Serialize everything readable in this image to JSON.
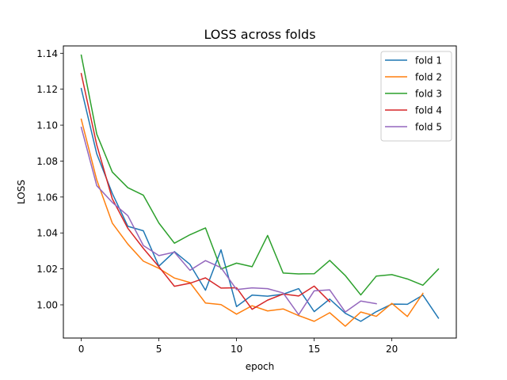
{
  "chart_data": {
    "type": "line",
    "title": "LOSS across folds",
    "xlabel": "epoch",
    "ylabel": "LOSS",
    "xlim": [
      -1.15,
      24.15
    ],
    "ylim": [
      0.9815,
      1.1441
    ],
    "xticks": [
      0,
      5,
      10,
      15,
      20
    ],
    "yticks": [
      1.0,
      1.02,
      1.04,
      1.06,
      1.08,
      1.1,
      1.12,
      1.14
    ],
    "grid": false,
    "legend_position": "top-right",
    "series": [
      {
        "name": "fold 1",
        "color": "#1f77b4",
        "x": [
          0,
          1,
          2,
          3,
          4,
          5,
          6,
          7,
          8,
          9,
          10,
          11,
          12,
          13,
          14,
          15,
          16,
          17,
          18,
          19,
          20,
          21,
          22,
          23
        ],
        "y": [
          1.1204,
          1.084,
          1.062,
          1.0437,
          1.0412,
          1.0215,
          1.0296,
          1.0225,
          1.0081,
          1.0306,
          0.999,
          1.0054,
          1.0048,
          1.0059,
          1.009,
          0.9962,
          1.0032,
          0.9953,
          0.9908,
          0.9962,
          1.0004,
          1.0003,
          1.0054,
          0.9926
        ]
      },
      {
        "name": "fold 2",
        "color": "#ff7f0e",
        "x": [
          0,
          1,
          2,
          3,
          4,
          5,
          6,
          7,
          8,
          9,
          10,
          11,
          12,
          13,
          14,
          15,
          16,
          17,
          18,
          19,
          20,
          21,
          22
        ],
        "y": [
          1.1033,
          1.0695,
          1.0455,
          1.0338,
          1.0243,
          1.0203,
          1.0149,
          1.0124,
          1.001,
          1.0001,
          0.9948,
          0.9995,
          0.9966,
          0.9977,
          0.994,
          0.9908,
          0.9956,
          0.9881,
          0.996,
          0.9936,
          1.0008,
          0.9935,
          1.0064
        ]
      },
      {
        "name": "fold 3",
        "color": "#2ca02c",
        "x": [
          0,
          1,
          2,
          3,
          4,
          5,
          6,
          7,
          8,
          9,
          10,
          11,
          12,
          13,
          14,
          15,
          16,
          17,
          18,
          19,
          20,
          21,
          22,
          23
        ],
        "y": [
          1.139,
          1.095,
          1.0739,
          1.0652,
          1.061,
          1.0455,
          1.0343,
          1.039,
          1.0428,
          1.0199,
          1.0232,
          1.0212,
          1.0386,
          1.0177,
          1.0172,
          1.0173,
          1.0247,
          1.0163,
          1.0055,
          1.016,
          1.0168,
          1.0144,
          1.0109,
          1.0199
        ]
      },
      {
        "name": "fold 4",
        "color": "#d62728",
        "x": [
          0,
          1,
          2,
          3,
          4,
          5,
          6,
          7,
          8,
          9,
          10,
          11,
          12,
          13,
          14,
          15,
          16
        ],
        "y": [
          1.1287,
          1.089,
          1.059,
          1.0426,
          1.0314,
          1.0212,
          1.0103,
          1.012,
          1.015,
          1.0093,
          1.0095,
          0.9975,
          1.0026,
          1.006,
          1.0049,
          1.0104,
          1.0017
        ]
      },
      {
        "name": "fold 5",
        "color": "#9467bd",
        "x": [
          0,
          1,
          2,
          3,
          4,
          5,
          6,
          7,
          8,
          9,
          10,
          11,
          12,
          13,
          14,
          15,
          16,
          17,
          18,
          19
        ],
        "y": [
          1.0988,
          1.0663,
          1.057,
          1.0496,
          1.033,
          1.0274,
          1.0293,
          1.0192,
          1.0246,
          1.0207,
          1.0085,
          1.0094,
          1.009,
          1.0066,
          0.9945,
          1.0078,
          1.0083,
          0.996,
          1.0021,
          1.0006
        ]
      }
    ]
  }
}
